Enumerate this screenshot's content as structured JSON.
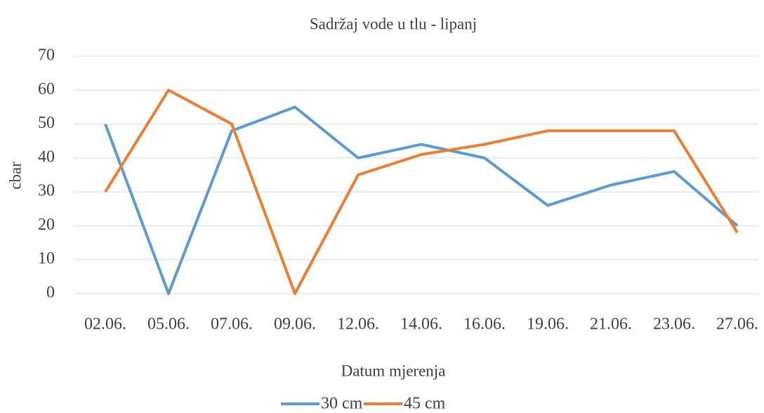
{
  "chart_data": {
    "type": "line",
    "title": "Sadržaj vode u tlu - lipanj",
    "x_label": "Datum mjerenja",
    "y_label": "cbar",
    "categories": [
      "02.06.",
      "05.06.",
      "07.06.",
      "09.06.",
      "12.06.",
      "14.06.",
      "16.06.",
      "19.06.",
      "21.06.",
      "23.06.",
      "27.06."
    ],
    "series": [
      {
        "name": "30 cm",
        "color": "#5b9bd5",
        "values": [
          50,
          0,
          48,
          55,
          40,
          44,
          40,
          26,
          32,
          36,
          20
        ]
      },
      {
        "name": "45 cm",
        "color": "#ed7d31",
        "values": [
          30,
          60,
          50,
          0,
          35,
          41,
          44,
          48,
          48,
          48,
          18
        ]
      }
    ],
    "ylim": [
      0,
      70
    ],
    "yticks": [
      0,
      10,
      20,
      30,
      40,
      50,
      60,
      70
    ],
    "grid": true,
    "legend": "bottom"
  }
}
